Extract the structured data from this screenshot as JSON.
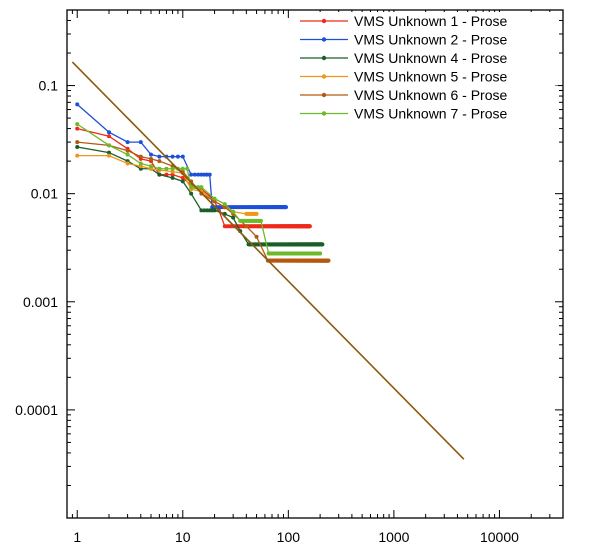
{
  "chart_data": {
    "type": "line",
    "title": "",
    "xlabel": "",
    "ylabel": "",
    "x_scale": "log",
    "y_scale": "log",
    "xlim": [
      0.8,
      40000
    ],
    "ylim": [
      1e-05,
      0.5
    ],
    "x_ticks": [
      {
        "value": 1,
        "label": "1"
      },
      {
        "value": 10,
        "label": "10"
      },
      {
        "value": 100,
        "label": "100"
      },
      {
        "value": 1000,
        "label": "1000"
      },
      {
        "value": 10000,
        "label": "10000"
      }
    ],
    "y_ticks": [
      {
        "value": 0.1,
        "label": "0.1"
      },
      {
        "value": 0.01,
        "label": "0.01"
      },
      {
        "value": 0.001,
        "label": "0.001"
      },
      {
        "value": 0.0001,
        "label": "0.0001"
      }
    ],
    "grid": false,
    "legend_position": "top-right",
    "series": [
      {
        "name": "VMS Unknown 1 - Prose",
        "color": "#ee2a1b",
        "markers": true,
        "points": [
          [
            1,
            0.04
          ],
          [
            2,
            0.034
          ],
          [
            3,
            0.026
          ],
          [
            4,
            0.021
          ],
          [
            5,
            0.02
          ],
          [
            6,
            0.015
          ],
          [
            8,
            0.015
          ],
          [
            10,
            0.014
          ],
          [
            12,
            0.012
          ],
          [
            15,
            0.011
          ],
          [
            18,
            0.0095
          ],
          [
            20,
            0.0085
          ],
          [
            22,
            0.007
          ],
          [
            25,
            0.005
          ],
          [
            30,
            0.005
          ],
          [
            50,
            0.005
          ],
          [
            80,
            0.005
          ],
          [
            120,
            0.005
          ],
          [
            160,
            0.005
          ]
        ]
      },
      {
        "name": "VMS Unknown 2 - Prose",
        "color": "#1e4fd8",
        "markers": true,
        "points": [
          [
            1,
            0.067
          ],
          [
            2,
            0.037
          ],
          [
            3,
            0.03
          ],
          [
            4,
            0.03
          ],
          [
            5,
            0.023
          ],
          [
            6,
            0.022
          ],
          [
            8,
            0.022
          ],
          [
            10,
            0.022
          ],
          [
            12,
            0.015
          ],
          [
            15,
            0.015
          ],
          [
            18,
            0.015
          ],
          [
            19,
            0.0075
          ],
          [
            22,
            0.0075
          ],
          [
            30,
            0.0075
          ],
          [
            50,
            0.0075
          ],
          [
            70,
            0.0075
          ],
          [
            95,
            0.0075
          ]
        ]
      },
      {
        "name": "VMS Unknown 4 - Prose",
        "color": "#1a5e28",
        "markers": true,
        "points": [
          [
            1,
            0.027
          ],
          [
            2,
            0.024
          ],
          [
            3,
            0.02
          ],
          [
            4,
            0.017
          ],
          [
            5,
            0.017
          ],
          [
            6,
            0.015
          ],
          [
            8,
            0.014
          ],
          [
            10,
            0.013
          ],
          [
            12,
            0.01
          ],
          [
            15,
            0.007
          ],
          [
            20,
            0.007
          ],
          [
            25,
            0.0065
          ],
          [
            30,
            0.006
          ],
          [
            35,
            0.0045
          ],
          [
            42,
            0.0034
          ],
          [
            60,
            0.0034
          ],
          [
            100,
            0.0034
          ],
          [
            150,
            0.0034
          ],
          [
            210,
            0.0034
          ]
        ]
      },
      {
        "name": "VMS Unknown 5 - Prose",
        "color": "#f0961e",
        "markers": true,
        "points": [
          [
            1,
            0.0225
          ],
          [
            2,
            0.0225
          ],
          [
            3,
            0.019
          ],
          [
            4,
            0.018
          ],
          [
            5,
            0.017
          ],
          [
            6,
            0.0165
          ],
          [
            8,
            0.016
          ],
          [
            10,
            0.0155
          ],
          [
            12,
            0.011
          ],
          [
            15,
            0.0105
          ],
          [
            20,
            0.0085
          ],
          [
            25,
            0.0075
          ],
          [
            30,
            0.0068
          ],
          [
            40,
            0.0065
          ],
          [
            50,
            0.0065
          ]
        ]
      },
      {
        "name": "VMS Unknown 6 - Prose",
        "color": "#b5590f",
        "markers": true,
        "points": [
          [
            1,
            0.03
          ],
          [
            2,
            0.028
          ],
          [
            3,
            0.025
          ],
          [
            4,
            0.022
          ],
          [
            5,
            0.021
          ],
          [
            6,
            0.02
          ],
          [
            8,
            0.018
          ],
          [
            10,
            0.016
          ],
          [
            12,
            0.013
          ],
          [
            15,
            0.01
          ],
          [
            20,
            0.0085
          ],
          [
            25,
            0.0075
          ],
          [
            30,
            0.0065
          ],
          [
            40,
            0.005
          ],
          [
            50,
            0.004
          ],
          [
            64,
            0.0024
          ],
          [
            80,
            0.0024
          ],
          [
            120,
            0.0024
          ],
          [
            180,
            0.0024
          ],
          [
            240,
            0.0024
          ]
        ]
      },
      {
        "name": "VMS Unknown 7 - Prose",
        "color": "#6cba2a",
        "markers": true,
        "points": [
          [
            1,
            0.044
          ],
          [
            2,
            0.028
          ],
          [
            3,
            0.023
          ],
          [
            4,
            0.019
          ],
          [
            5,
            0.018
          ],
          [
            6,
            0.017
          ],
          [
            8,
            0.017
          ],
          [
            10,
            0.017
          ],
          [
            11,
            0.017
          ],
          [
            12,
            0.0115
          ],
          [
            15,
            0.0115
          ],
          [
            20,
            0.009
          ],
          [
            25,
            0.008
          ],
          [
            30,
            0.0068
          ],
          [
            35,
            0.0056
          ],
          [
            40,
            0.0056
          ],
          [
            55,
            0.0056
          ],
          [
            65,
            0.0028
          ],
          [
            90,
            0.0028
          ],
          [
            140,
            0.0028
          ],
          [
            200,
            0.0028
          ]
        ]
      },
      {
        "name": "",
        "color": "#8a5a0c",
        "markers": false,
        "points": [
          [
            0.9,
            0.165
          ],
          [
            4600,
            3.5e-05
          ]
        ]
      }
    ]
  }
}
